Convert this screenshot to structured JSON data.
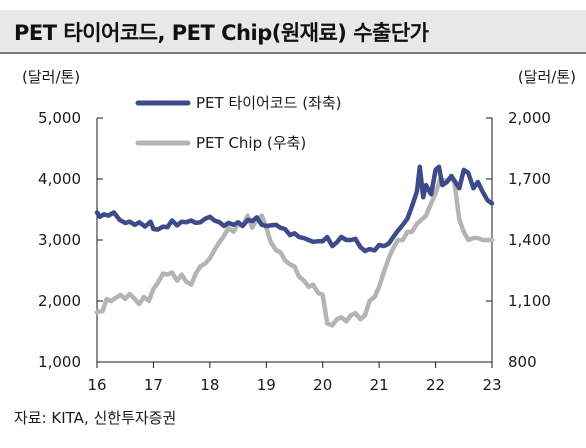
{
  "title": "PET 타이어코드, PET Chip(원재료) 수출단가",
  "units": {
    "left": "(달러/톤)",
    "right": "(달러/톤)"
  },
  "source": "자료: KITA, 신한투자증권",
  "colors": {
    "tire_cord": "#3d4b8a",
    "pet_chip": "#b4b4b4",
    "axis": "#1a1a1a"
  },
  "chart_data": {
    "type": "line",
    "xlabel": "",
    "ylabel": "",
    "x_ticks": [
      "16",
      "17",
      "18",
      "19",
      "20",
      "21",
      "22",
      "23"
    ],
    "xlim": [
      16.0,
      23.0
    ],
    "y_left": {
      "lim": [
        1000,
        5000
      ],
      "ticks": [
        "1,000",
        "2,000",
        "3,000",
        "4,000",
        "5,000"
      ],
      "tick_values": [
        1000,
        2000,
        3000,
        4000,
        5000
      ]
    },
    "y_right": {
      "lim": [
        800,
        2000
      ],
      "ticks": [
        "800",
        "1,100",
        "1,400",
        "1,700",
        "2,000"
      ],
      "tick_values": [
        800,
        1100,
        1400,
        1700,
        2000
      ]
    },
    "legend_position": "top-left",
    "grid": false,
    "series": [
      {
        "name": "PET 타이어코드 (좌축)",
        "axis": "left",
        "x": [
          16.0,
          16.05,
          16.12,
          16.2,
          16.3,
          16.4,
          16.5,
          16.58,
          16.67,
          16.75,
          16.85,
          16.95,
          17.0,
          17.08,
          17.17,
          17.25,
          17.33,
          17.42,
          17.5,
          17.58,
          17.67,
          17.75,
          17.83,
          17.92,
          18.0,
          18.08,
          18.17,
          18.25,
          18.33,
          18.42,
          18.5,
          18.58,
          18.67,
          18.75,
          18.83,
          18.92,
          19.0,
          19.08,
          19.17,
          19.25,
          19.33,
          19.42,
          19.5,
          19.58,
          19.67,
          19.75,
          19.83,
          19.92,
          20.0,
          20.08,
          20.17,
          20.25,
          20.33,
          20.42,
          20.5,
          20.58,
          20.67,
          20.75,
          20.83,
          20.92,
          21.0,
          21.08,
          21.17,
          21.25,
          21.33,
          21.42,
          21.5,
          21.58,
          21.67,
          21.72,
          21.78,
          21.83,
          21.92,
          22.0,
          22.06,
          22.12,
          22.2,
          22.28,
          22.35,
          22.42,
          22.5,
          22.58,
          22.67,
          22.75,
          22.83,
          22.92,
          23.0
        ],
        "y": [
          3450,
          3380,
          3420,
          3400,
          3450,
          3330,
          3280,
          3300,
          3250,
          3290,
          3220,
          3300,
          3180,
          3170,
          3220,
          3210,
          3320,
          3240,
          3300,
          3290,
          3320,
          3280,
          3290,
          3350,
          3380,
          3320,
          3290,
          3230,
          3280,
          3250,
          3290,
          3230,
          3330,
          3310,
          3370,
          3250,
          3230,
          3240,
          3250,
          3200,
          3180,
          3080,
          3110,
          3050,
          3030,
          3000,
          2970,
          2980,
          2980,
          3050,
          2900,
          2960,
          3050,
          3000,
          3000,
          3020,
          2880,
          2820,
          2850,
          2830,
          2920,
          2900,
          2940,
          3050,
          3150,
          3250,
          3350,
          3550,
          3800,
          4200,
          3700,
          3900,
          3750,
          4150,
          4200,
          3900,
          3950,
          4050,
          3950,
          3850,
          4150,
          4100,
          3850,
          3950,
          3800,
          3650,
          3600
        ]
      },
      {
        "name": "PET Chip (우축)",
        "axis": "right",
        "x": [
          16.0,
          16.05,
          16.1,
          16.17,
          16.25,
          16.33,
          16.42,
          16.5,
          16.58,
          16.67,
          16.75,
          16.83,
          16.92,
          17.0,
          17.08,
          17.17,
          17.25,
          17.33,
          17.42,
          17.5,
          17.58,
          17.67,
          17.75,
          17.83,
          17.92,
          18.0,
          18.08,
          18.17,
          18.25,
          18.33,
          18.42,
          18.5,
          18.58,
          18.67,
          18.75,
          18.83,
          18.92,
          19.0,
          19.08,
          19.17,
          19.25,
          19.33,
          19.42,
          19.5,
          19.58,
          19.67,
          19.75,
          19.83,
          19.92,
          20.0,
          20.08,
          20.17,
          20.25,
          20.33,
          20.42,
          20.5,
          20.58,
          20.67,
          20.75,
          20.83,
          20.92,
          21.0,
          21.08,
          21.17,
          21.25,
          21.33,
          21.42,
          21.5,
          21.58,
          21.67,
          21.75,
          21.83,
          21.92,
          22.0,
          22.08,
          22.17,
          22.25,
          22.33,
          22.42,
          22.5,
          22.58,
          22.67,
          22.75,
          22.83,
          22.92,
          23.0
        ],
        "y": [
          1045,
          1050,
          1050,
          1110,
          1100,
          1115,
          1130,
          1110,
          1135,
          1110,
          1085,
          1120,
          1100,
          1160,
          1190,
          1235,
          1230,
          1240,
          1200,
          1230,
          1195,
          1180,
          1235,
          1270,
          1285,
          1310,
          1350,
          1390,
          1420,
          1460,
          1440,
          1480,
          1470,
          1520,
          1460,
          1500,
          1520,
          1460,
          1390,
          1350,
          1340,
          1300,
          1280,
          1270,
          1220,
          1200,
          1170,
          1180,
          1140,
          1130,
          990,
          980,
          1010,
          1020,
          1000,
          1030,
          1040,
          1010,
          1030,
          1100,
          1120,
          1170,
          1240,
          1310,
          1360,
          1400,
          1400,
          1440,
          1440,
          1480,
          1500,
          1520,
          1580,
          1630,
          1700,
          1690,
          1700,
          1690,
          1500,
          1440,
          1400,
          1410,
          1410,
          1400,
          1400,
          1400
        ]
      }
    ]
  }
}
